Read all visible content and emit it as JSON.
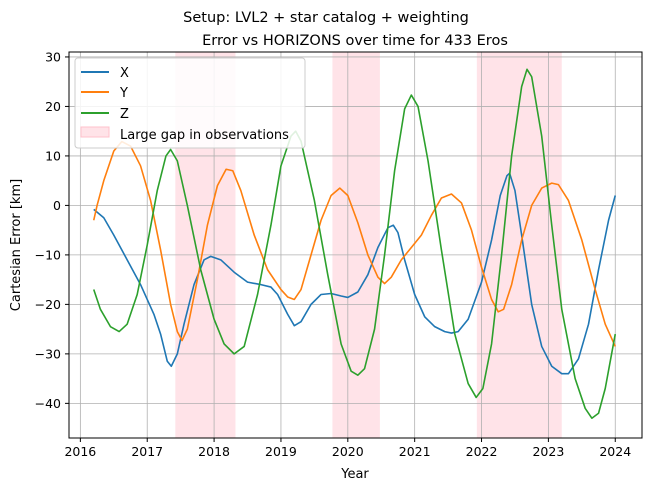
{
  "figure": {
    "suptitle": "Setup: LVL2 + star catalog + weighting"
  },
  "chart_data": {
    "type": "line",
    "title": "Error vs HORIZONS over time for 433 Eros",
    "xlabel": "Year",
    "ylabel": "Cartesian Error [km]",
    "xlim": [
      2015.83,
      2024.4
    ],
    "ylim": [
      -47,
      31
    ],
    "xticks": [
      2016,
      2017,
      2018,
      2019,
      2020,
      2021,
      2022,
      2023,
      2024
    ],
    "yticks": [
      -40,
      -30,
      -20,
      -10,
      0,
      10,
      20,
      30
    ],
    "grid": true,
    "legend_position": "top-left",
    "legend": [
      "X",
      "Y",
      "Z",
      "Large gap in observations"
    ],
    "gaps": [
      {
        "label": "Large gap in observations",
        "color": "#ffc0cb",
        "ranges": [
          [
            2017.42,
            2018.32
          ],
          [
            2019.77,
            2020.48
          ],
          [
            2021.93,
            2023.2
          ]
        ]
      }
    ],
    "series": [
      {
        "name": "X",
        "color": "#1f77b4",
        "points": [
          [
            2016.2,
            -0.8
          ],
          [
            2016.35,
            -2.5
          ],
          [
            2016.5,
            -6
          ],
          [
            2016.7,
            -11
          ],
          [
            2016.9,
            -16
          ],
          [
            2017.1,
            -22
          ],
          [
            2017.2,
            -26
          ],
          [
            2017.3,
            -31.5
          ],
          [
            2017.36,
            -32.5
          ],
          [
            2017.45,
            -30
          ],
          [
            2017.55,
            -24
          ],
          [
            2017.7,
            -16
          ],
          [
            2017.85,
            -11
          ],
          [
            2017.95,
            -10.3
          ],
          [
            2018.1,
            -11
          ],
          [
            2018.3,
            -13.5
          ],
          [
            2018.5,
            -15.5
          ],
          [
            2018.7,
            -16
          ],
          [
            2018.85,
            -16.5
          ],
          [
            2018.95,
            -18
          ],
          [
            2019.1,
            -22
          ],
          [
            2019.2,
            -24.3
          ],
          [
            2019.3,
            -23.5
          ],
          [
            2019.45,
            -20
          ],
          [
            2019.6,
            -18
          ],
          [
            2019.75,
            -17.8
          ],
          [
            2019.9,
            -18.3
          ],
          [
            2020.0,
            -18.6
          ],
          [
            2020.15,
            -17.5
          ],
          [
            2020.3,
            -14
          ],
          [
            2020.45,
            -8.5
          ],
          [
            2020.6,
            -4.5
          ],
          [
            2020.68,
            -4
          ],
          [
            2020.75,
            -5.5
          ],
          [
            2020.85,
            -11
          ],
          [
            2021.0,
            -18
          ],
          [
            2021.15,
            -22.5
          ],
          [
            2021.3,
            -24.5
          ],
          [
            2021.45,
            -25.5
          ],
          [
            2021.55,
            -25.8
          ],
          [
            2021.65,
            -25.5
          ],
          [
            2021.8,
            -23
          ],
          [
            2022.0,
            -15.5
          ],
          [
            2022.15,
            -7
          ],
          [
            2022.28,
            2
          ],
          [
            2022.38,
            6
          ],
          [
            2022.42,
            6.5
          ],
          [
            2022.5,
            3
          ],
          [
            2022.6,
            -6
          ],
          [
            2022.75,
            -20
          ],
          [
            2022.9,
            -28.5
          ],
          [
            2023.05,
            -32.5
          ],
          [
            2023.2,
            -34
          ],
          [
            2023.3,
            -34
          ],
          [
            2023.45,
            -31
          ],
          [
            2023.6,
            -24
          ],
          [
            2023.75,
            -13
          ],
          [
            2023.9,
            -3
          ],
          [
            2024.0,
            2
          ]
        ]
      },
      {
        "name": "Y",
        "color": "#ff7f0e",
        "points": [
          [
            2016.2,
            -3
          ],
          [
            2016.25,
            0
          ],
          [
            2016.35,
            5
          ],
          [
            2016.5,
            11
          ],
          [
            2016.62,
            12.9
          ],
          [
            2016.75,
            12
          ],
          [
            2016.9,
            8
          ],
          [
            2017.05,
            1
          ],
          [
            2017.2,
            -9
          ],
          [
            2017.35,
            -20
          ],
          [
            2017.45,
            -25.5
          ],
          [
            2017.52,
            -27.3
          ],
          [
            2017.6,
            -25
          ],
          [
            2017.75,
            -15
          ],
          [
            2017.9,
            -4
          ],
          [
            2018.05,
            4
          ],
          [
            2018.18,
            7.3
          ],
          [
            2018.28,
            7
          ],
          [
            2018.4,
            3
          ],
          [
            2018.6,
            -6
          ],
          [
            2018.8,
            -13
          ],
          [
            2019.0,
            -17
          ],
          [
            2019.1,
            -18.5
          ],
          [
            2019.2,
            -19
          ],
          [
            2019.3,
            -17
          ],
          [
            2019.45,
            -10
          ],
          [
            2019.6,
            -3
          ],
          [
            2019.75,
            2
          ],
          [
            2019.88,
            3.5
          ],
          [
            2020.0,
            2
          ],
          [
            2020.15,
            -3.5
          ],
          [
            2020.3,
            -10
          ],
          [
            2020.45,
            -14.5
          ],
          [
            2020.55,
            -15.8
          ],
          [
            2020.65,
            -14.5
          ],
          [
            2020.8,
            -11
          ],
          [
            2020.95,
            -8.5
          ],
          [
            2021.1,
            -6
          ],
          [
            2021.25,
            -2
          ],
          [
            2021.4,
            1.5
          ],
          [
            2021.55,
            2.3
          ],
          [
            2021.7,
            0.5
          ],
          [
            2021.85,
            -5
          ],
          [
            2022.0,
            -12.5
          ],
          [
            2022.15,
            -19
          ],
          [
            2022.25,
            -21.5
          ],
          [
            2022.33,
            -21
          ],
          [
            2022.45,
            -16
          ],
          [
            2022.6,
            -7
          ],
          [
            2022.75,
            0
          ],
          [
            2022.9,
            3.5
          ],
          [
            2023.05,
            4.5
          ],
          [
            2023.15,
            4.2
          ],
          [
            2023.3,
            1
          ],
          [
            2023.5,
            -7
          ],
          [
            2023.7,
            -17
          ],
          [
            2023.85,
            -24
          ],
          [
            2024.0,
            -28.5
          ]
        ]
      },
      {
        "name": "Z",
        "color": "#2ca02c",
        "points": [
          [
            2016.2,
            -17
          ],
          [
            2016.3,
            -21
          ],
          [
            2016.45,
            -24.5
          ],
          [
            2016.58,
            -25.5
          ],
          [
            2016.7,
            -24
          ],
          [
            2016.85,
            -18
          ],
          [
            2017.0,
            -8
          ],
          [
            2017.15,
            3
          ],
          [
            2017.28,
            10
          ],
          [
            2017.35,
            11.3
          ],
          [
            2017.45,
            9
          ],
          [
            2017.6,
            0
          ],
          [
            2017.8,
            -13
          ],
          [
            2018.0,
            -23
          ],
          [
            2018.15,
            -28
          ],
          [
            2018.3,
            -30
          ],
          [
            2018.45,
            -28.5
          ],
          [
            2018.65,
            -18
          ],
          [
            2018.85,
            -4
          ],
          [
            2019.0,
            8
          ],
          [
            2019.15,
            14
          ],
          [
            2019.22,
            15
          ],
          [
            2019.3,
            13
          ],
          [
            2019.5,
            1
          ],
          [
            2019.7,
            -14
          ],
          [
            2019.9,
            -28
          ],
          [
            2020.05,
            -33.5
          ],
          [
            2020.15,
            -34.3
          ],
          [
            2020.25,
            -33
          ],
          [
            2020.4,
            -25
          ],
          [
            2020.55,
            -10
          ],
          [
            2020.7,
            7
          ],
          [
            2020.85,
            19.5
          ],
          [
            2020.95,
            22.3
          ],
          [
            2021.05,
            20
          ],
          [
            2021.2,
            9
          ],
          [
            2021.4,
            -9
          ],
          [
            2021.6,
            -26
          ],
          [
            2021.8,
            -36
          ],
          [
            2021.92,
            -38.8
          ],
          [
            2022.02,
            -37
          ],
          [
            2022.15,
            -28
          ],
          [
            2022.3,
            -10
          ],
          [
            2022.45,
            10
          ],
          [
            2022.6,
            24
          ],
          [
            2022.68,
            27.5
          ],
          [
            2022.75,
            26
          ],
          [
            2022.9,
            14
          ],
          [
            2023.05,
            -4
          ],
          [
            2023.2,
            -21
          ],
          [
            2023.4,
            -35
          ],
          [
            2023.55,
            -41
          ],
          [
            2023.65,
            -43
          ],
          [
            2023.75,
            -42
          ],
          [
            2023.85,
            -37
          ],
          [
            2024.0,
            -26
          ]
        ]
      }
    ]
  }
}
